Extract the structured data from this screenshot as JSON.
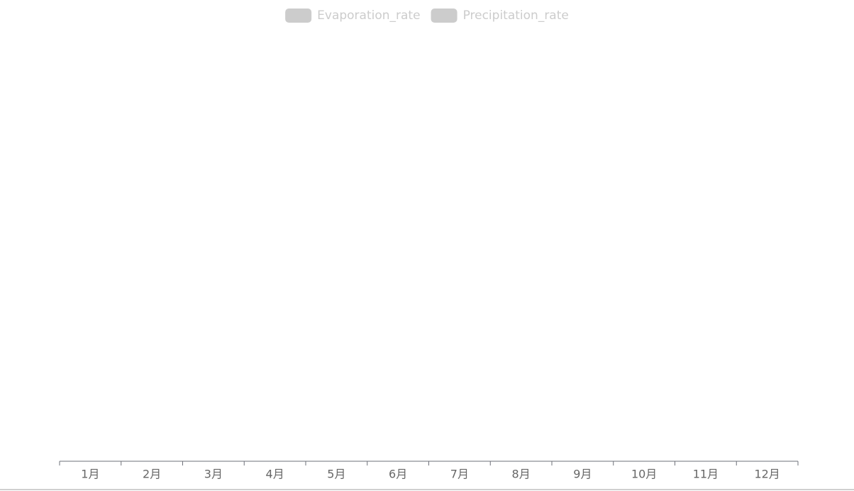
{
  "chart_data": {
    "type": "bar",
    "categories": [
      "1月",
      "2月",
      "3月",
      "4月",
      "5月",
      "6月",
      "7月",
      "8月",
      "9月",
      "10月",
      "11月",
      "12月"
    ],
    "series": [
      {
        "name": "Evaporation_rate",
        "color": "#ccc",
        "selected": false
      },
      {
        "name": "Precipitation_rate",
        "color": "#ccc",
        "selected": false
      }
    ],
    "legend": "top"
  }
}
